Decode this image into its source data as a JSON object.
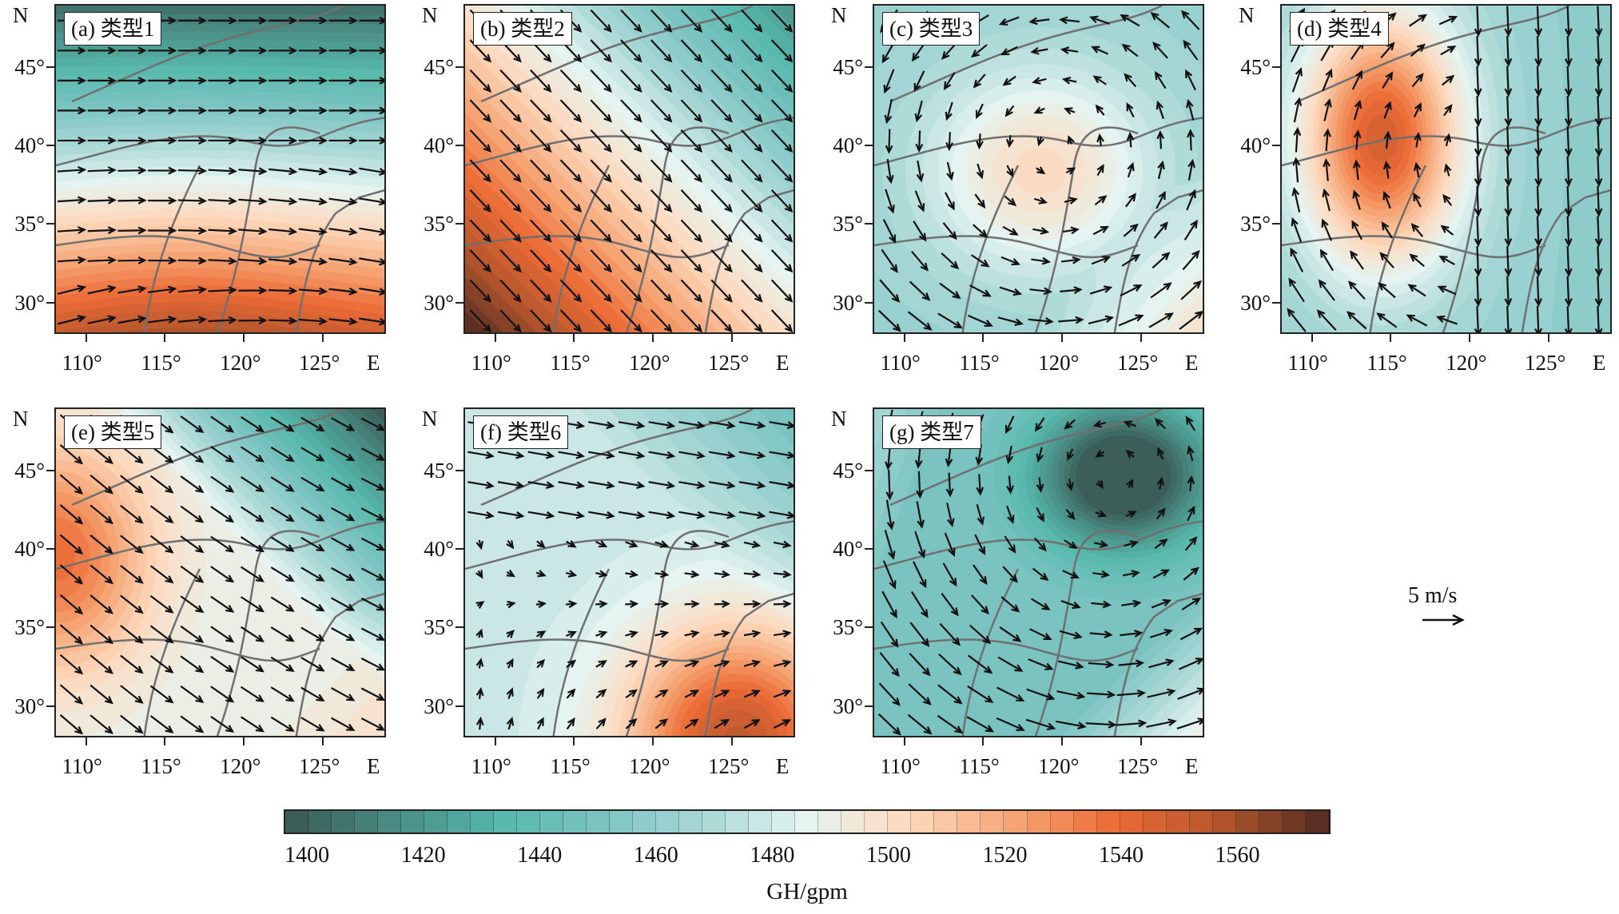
{
  "chart_data": {
    "type": "heatmap",
    "description_units": {
      "fill": "GH/gpm",
      "vectors": "m/s"
    },
    "panels": [
      {
        "id": "a",
        "label": "(a) 类型1"
      },
      {
        "id": "b",
        "label": "(b) 类型2"
      },
      {
        "id": "c",
        "label": "(c) 类型3"
      },
      {
        "id": "d",
        "label": "(d) 类型4"
      },
      {
        "id": "e",
        "label": "(e) 类型5"
      },
      {
        "id": "f",
        "label": "(f) 类型6"
      },
      {
        "id": "g",
        "label": "(g) 类型7"
      }
    ],
    "x_axis": {
      "label": "E",
      "range": [
        108,
        129
      ],
      "ticks": [
        110,
        115,
        120,
        125
      ],
      "tick_labels": [
        "110°",
        "115°",
        "120°",
        "125°"
      ]
    },
    "y_axis": {
      "label": "N",
      "range": [
        28,
        49
      ],
      "ticks": [
        45,
        40,
        35,
        30
      ],
      "tick_labels": [
        "45°",
        "40°",
        "35°",
        "30°"
      ]
    },
    "colorbar": {
      "label": "GH/gpm",
      "range": [
        1396,
        1576
      ],
      "step": 4,
      "ticks": [
        1400,
        1420,
        1440,
        1460,
        1480,
        1500,
        1520,
        1540,
        1560
      ],
      "tick_labels": [
        "1400",
        "1420",
        "1440",
        "1460",
        "1480",
        "1500",
        "1520",
        "1540",
        "1560"
      ],
      "color_stops": [
        "#3b5f58",
        "#4a8e86",
        "#56b8ab",
        "#7cc4c2",
        "#a8d8d6",
        "#e6f4f1",
        "#fdd9bd",
        "#f6a777",
        "#ec6c36",
        "#b8572e",
        "#5b3022"
      ]
    },
    "reference_vector": {
      "label": "5 m/s",
      "value": 5
    }
  }
}
